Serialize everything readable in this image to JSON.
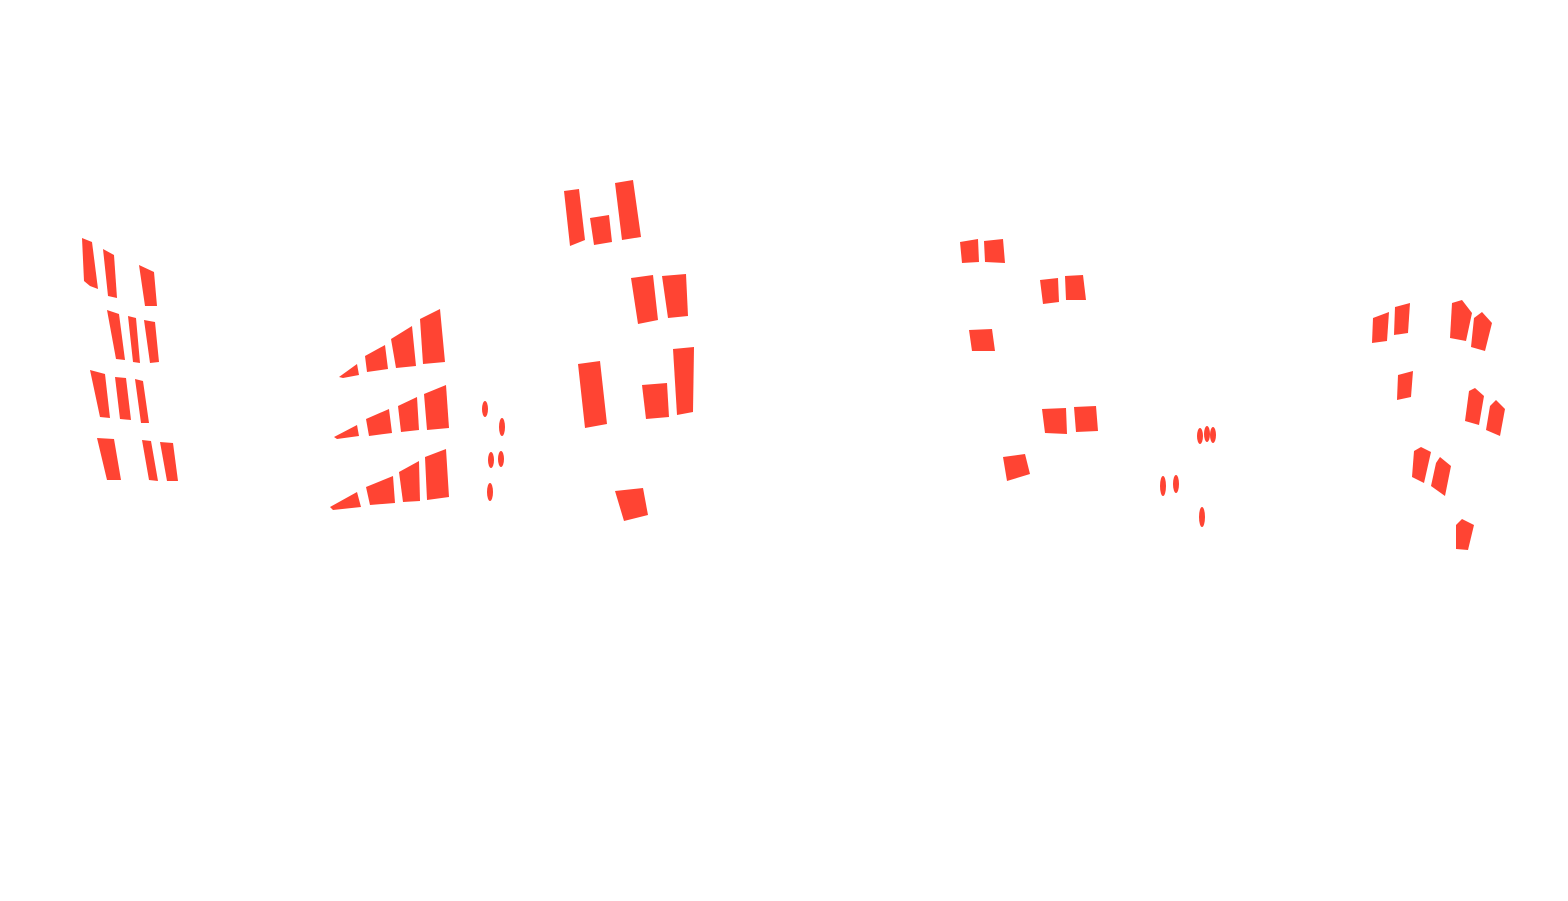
{
  "colors": {
    "background": "#ffffff",
    "accent": "#ff4433"
  },
  "scene": {
    "description_visible_text": "",
    "element_kind": "window-shape"
  }
}
